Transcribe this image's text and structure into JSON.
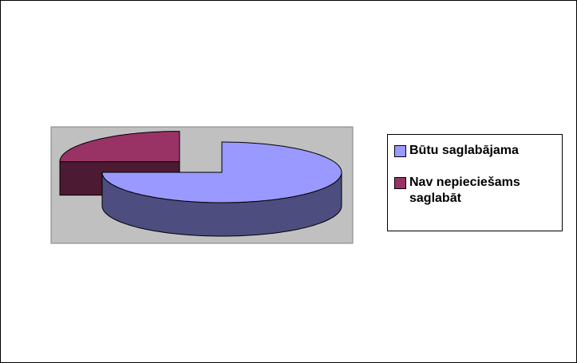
{
  "chart_data": {
    "type": "pie3d",
    "categories": [
      "Būtu saglabājama",
      "Nav nepieciešams saglabāt"
    ],
    "values": [
      75,
      25
    ],
    "colors": [
      "#9999ff",
      "#993366"
    ],
    "exploded": [
      false,
      true
    ]
  }
}
